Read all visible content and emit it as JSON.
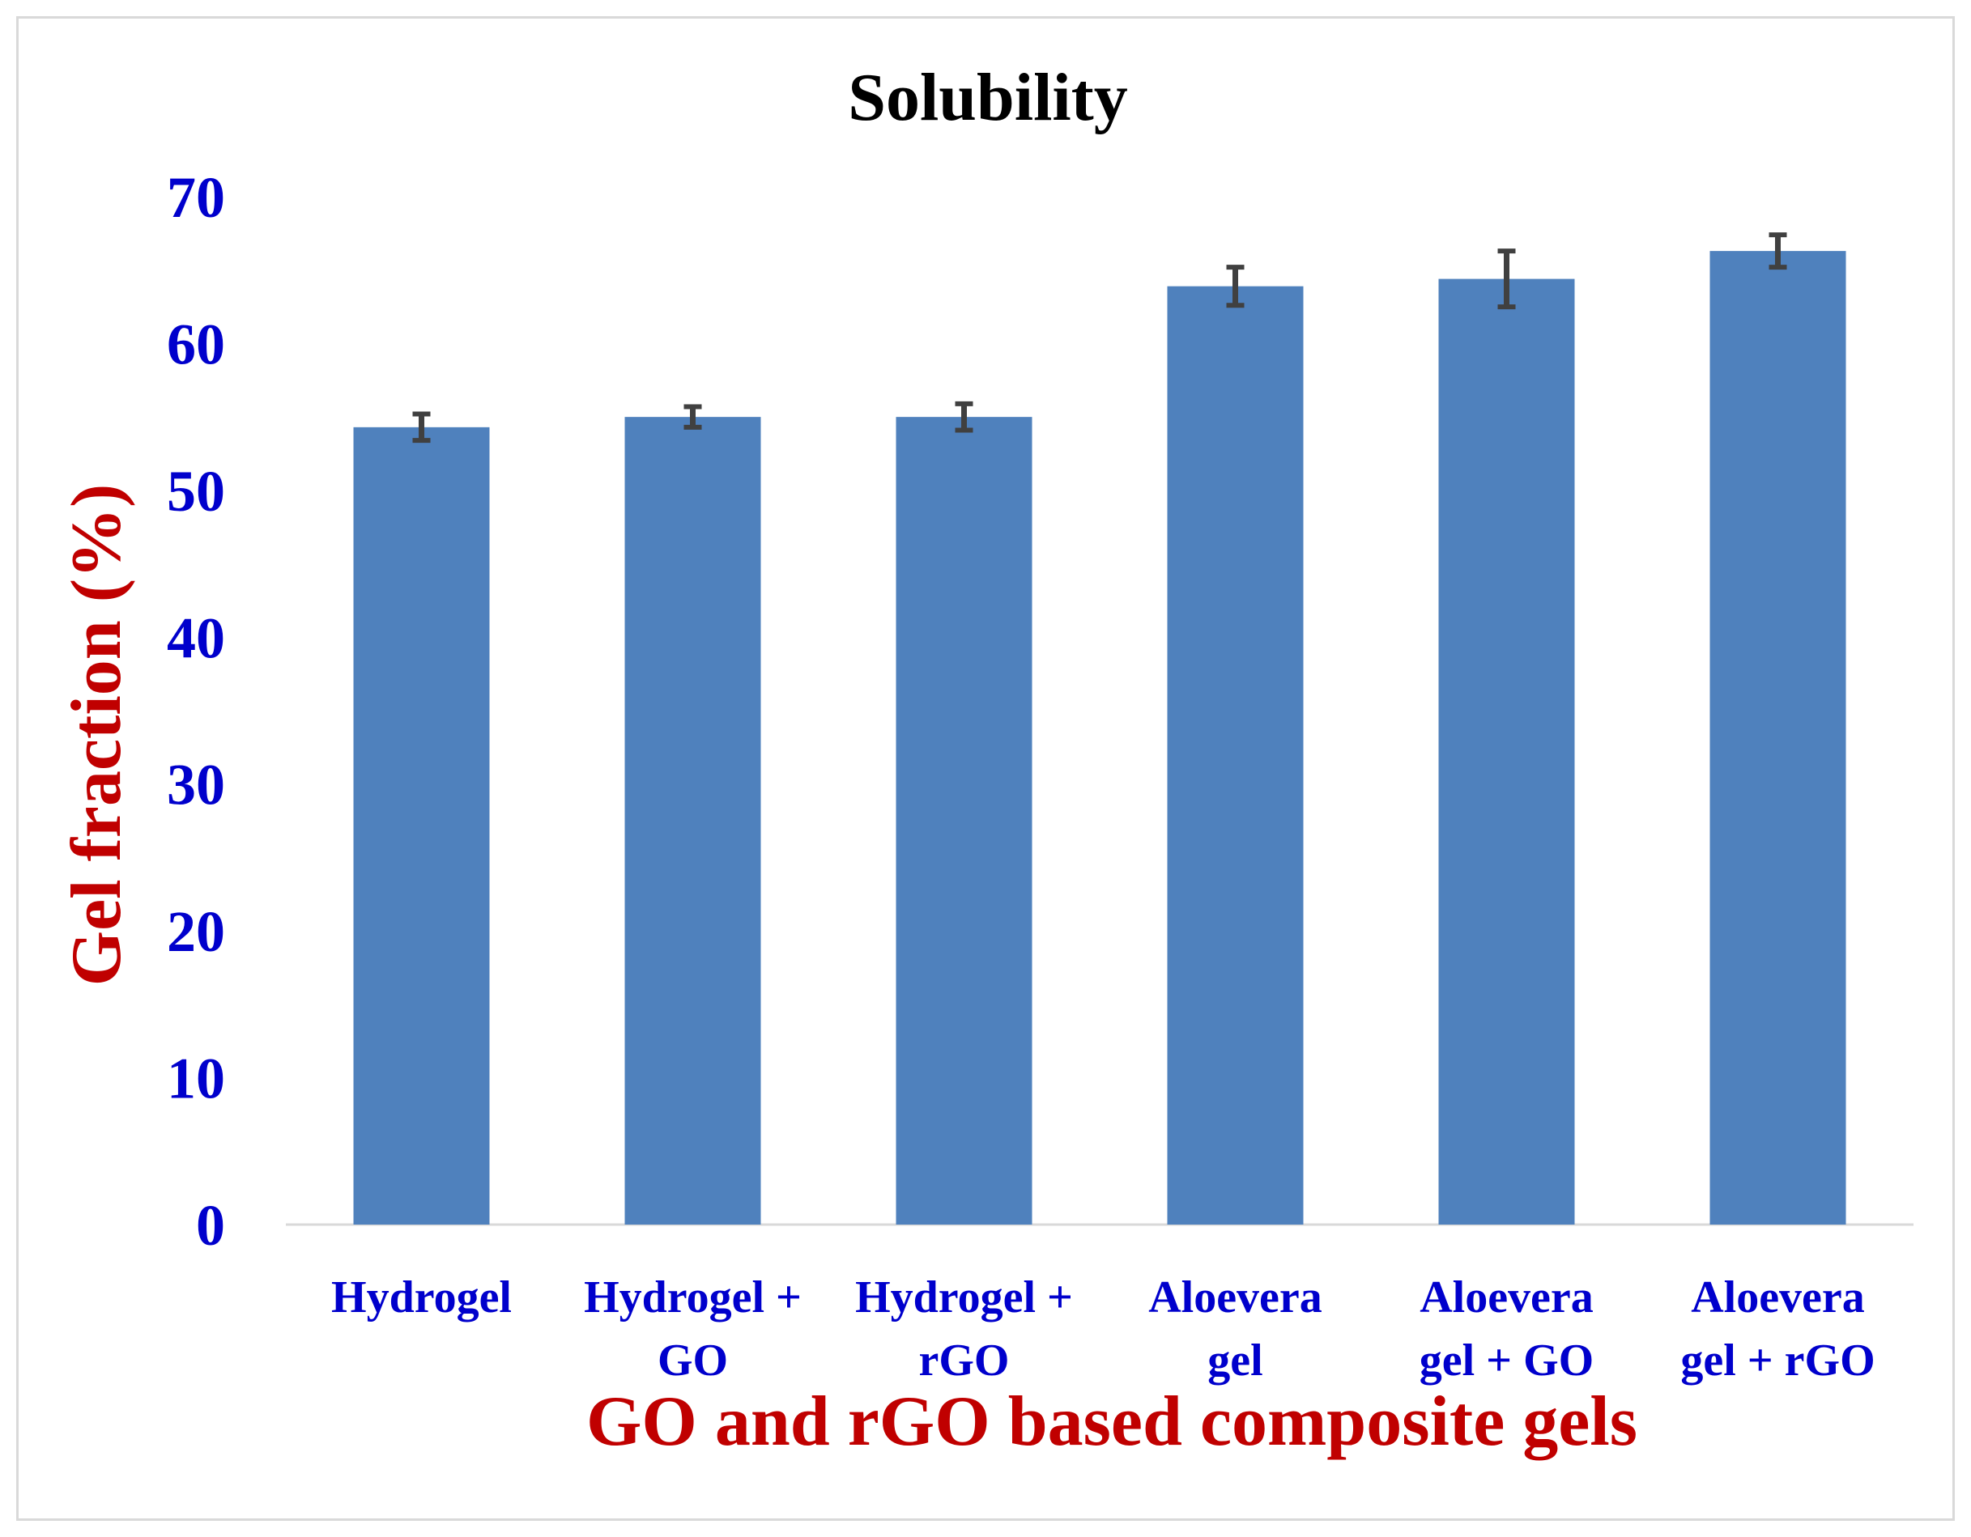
{
  "chart_data": {
    "type": "bar",
    "title": "Solubility",
    "xlabel": "GO and rGO based composite gels",
    "ylabel": "Gel fraction (%)",
    "ylim": [
      0,
      70
    ],
    "yticks": [
      0,
      10,
      20,
      30,
      40,
      50,
      60,
      70
    ],
    "grid": false,
    "legend": "none",
    "categories": [
      [
        "Hydrogel"
      ],
      [
        "Hydrogel +",
        "GO"
      ],
      [
        "Hydrogel +",
        "rGO"
      ],
      [
        "Aloevera",
        "gel"
      ],
      [
        "Aloevera",
        "gel + GO"
      ],
      [
        "Aloevera",
        "gel + rGO"
      ]
    ],
    "values": [
      54.3,
      55.0,
      55.0,
      63.9,
      64.4,
      66.3
    ],
    "errors": [
      0.9,
      0.7,
      0.9,
      1.3,
      1.9,
      1.1
    ],
    "colors": {
      "bar": "#4f81bd",
      "error_bar": "#404040",
      "axis_line": "#d9d9d9",
      "tick_text": "#0000cc",
      "axis_label": "#c00000",
      "title": "#000000"
    }
  }
}
